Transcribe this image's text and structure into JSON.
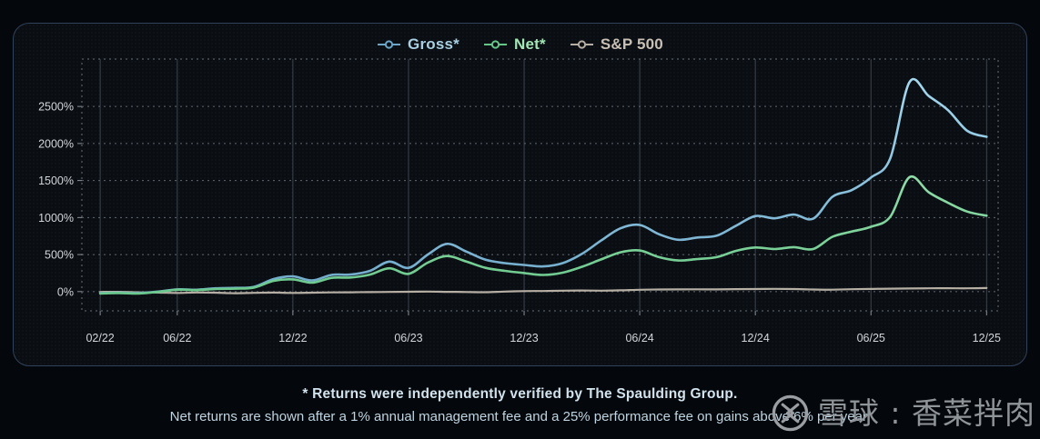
{
  "chart_data": {
    "type": "line",
    "title": "",
    "x_axis": {
      "unit": "month",
      "start_label": "02/22",
      "tick_labels": [
        "02/22",
        "06/22",
        "12/22",
        "06/23",
        "12/23",
        "06/24",
        "12/24",
        "06/25",
        "12/25"
      ],
      "tick_month_index": [
        0,
        4,
        10,
        16,
        22,
        28,
        34,
        40,
        46
      ],
      "xlim_month_index": [
        -0.95,
        46.6
      ]
    },
    "y_axis": {
      "tick_labels": [
        "0%",
        "500%",
        "1000%",
        "1500%",
        "2000%",
        "2500%"
      ],
      "tick_values": [
        0,
        500,
        1000,
        1500,
        2000,
        2500
      ],
      "ylim": [
        -260,
        3140
      ],
      "grid": "dashed"
    },
    "series": [
      {
        "id": "sp500",
        "name": "S&P 500",
        "color": "#b4ada2",
        "color_top": "#c9c2b7",
        "label_color": "#c8c0b5",
        "width": 2.2,
        "values": [
          -5,
          -3,
          -10,
          -13,
          -18,
          -12,
          -15,
          -22,
          -17,
          -13,
          -18,
          -14,
          -11,
          -9,
          -7,
          -5,
          -2,
          0,
          -3,
          -6,
          -8,
          0,
          6,
          8,
          12,
          15,
          13,
          17,
          25,
          28,
          30,
          31,
          30,
          33,
          35,
          37,
          34,
          28,
          26,
          32,
          36,
          40,
          42,
          44,
          46,
          44,
          48
        ]
      },
      {
        "id": "gross",
        "name": "Gross*",
        "color": "#6ca6c7",
        "color_top": "#a9dcf2",
        "label_color": "#a9cfe3",
        "width": 2.6,
        "values": [
          -20,
          -15,
          -20,
          0,
          30,
          25,
          45,
          50,
          65,
          170,
          205,
          150,
          225,
          230,
          280,
          405,
          320,
          500,
          645,
          540,
          430,
          385,
          360,
          340,
          385,
          510,
          690,
          855,
          900,
          775,
          700,
          730,
          755,
          890,
          1020,
          990,
          1040,
          985,
          1280,
          1370,
          1540,
          1800,
          2830,
          2640,
          2450,
          2170,
          2090
        ]
      },
      {
        "id": "net",
        "name": "Net*",
        "color": "#66c689",
        "color_top": "#b6efc4",
        "label_color": "#a3e6b6",
        "width": 2.6,
        "values": [
          -25,
          -20,
          -25,
          -5,
          25,
          20,
          35,
          40,
          55,
          145,
          165,
          120,
          185,
          190,
          230,
          315,
          240,
          390,
          480,
          405,
          320,
          280,
          250,
          225,
          255,
          335,
          435,
          530,
          555,
          465,
          420,
          440,
          465,
          550,
          595,
          575,
          600,
          575,
          740,
          810,
          875,
          1010,
          1545,
          1340,
          1200,
          1080,
          1025
        ]
      }
    ],
    "legend_position": "top-center",
    "legend_order": [
      "gross",
      "net",
      "sp500"
    ]
  },
  "footer": {
    "line1": "* Returns were independently verified by The Spaulding Group.",
    "line2": "Net returns are shown after a 1% annual management fee and a 25% performance fee on gains above 6% per year."
  },
  "watermark": {
    "text": "雪球 : 香菜拌肉",
    "logo": "snowball-logo"
  },
  "colors": {
    "page_background": "#04070b",
    "card_background": "#0a0d12",
    "card_border": "#31425a",
    "axis_text": "#d2d6da",
    "grid_dashed": "#787f86",
    "grid_vertical": "#3e454e",
    "tick": "#8b9197",
    "footer_text": "#d2e3ee",
    "watermark": "#8f9499"
  }
}
